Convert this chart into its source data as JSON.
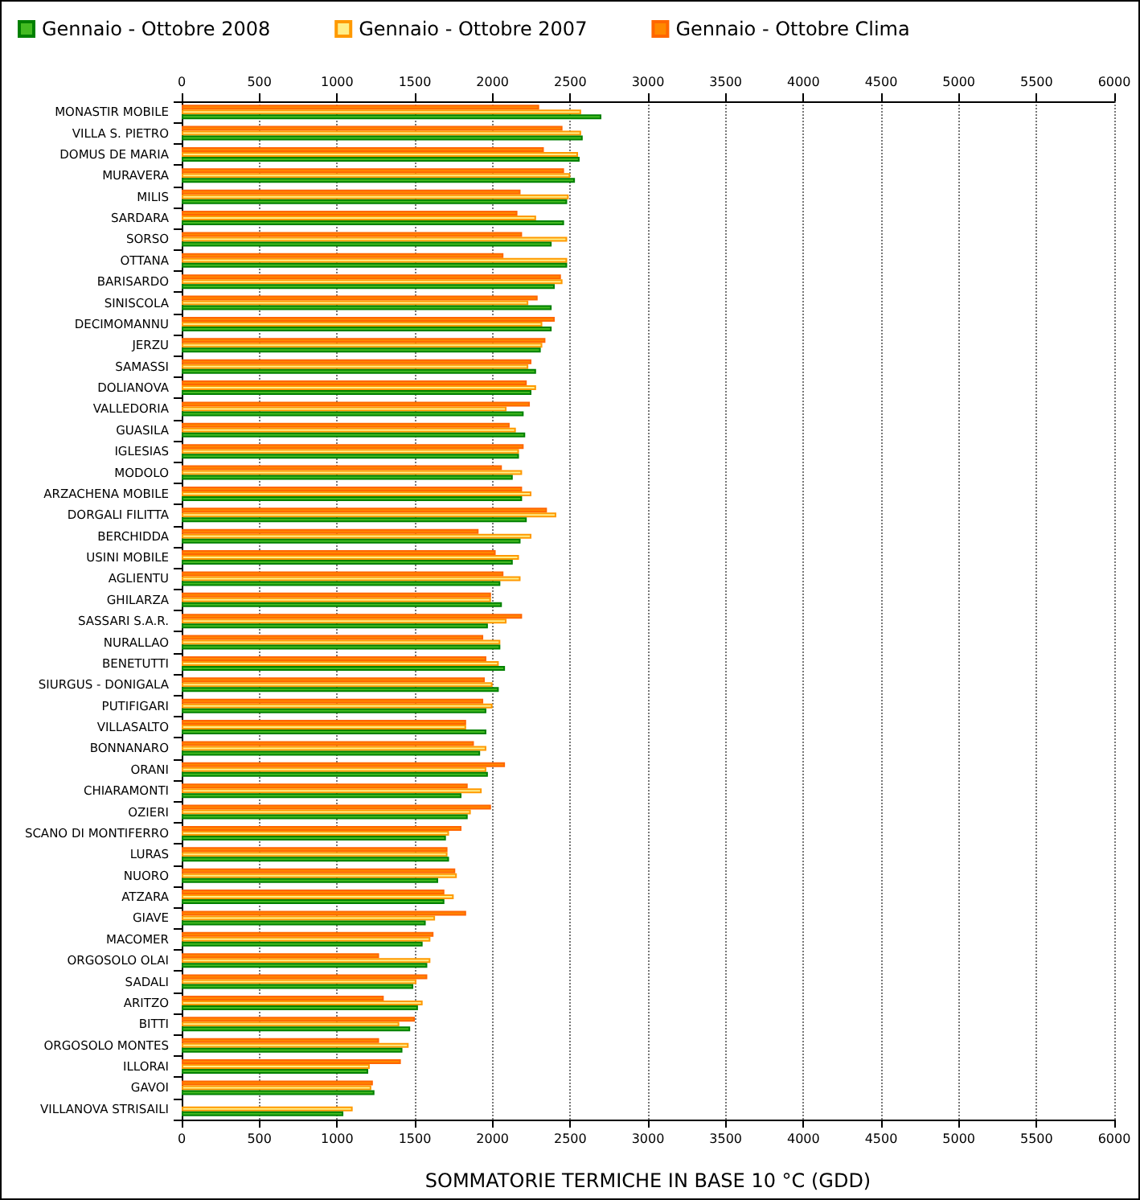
{
  "chart_data": {
    "type": "bar",
    "orientation": "horizontal",
    "xlabel": "SOMMATORIE TERMICHE IN BASE 10 °C (GDD)",
    "categories": [
      "MONASTIR MOBILE",
      "VILLA S. PIETRO",
      "DOMUS DE MARIA",
      "MURAVERA",
      "MILIS",
      "SARDARA",
      "SORSO",
      "OTTANA",
      "BARISARDO",
      "SINISCOLA",
      "DECIMOMANNU",
      "JERZU",
      "SAMASSI",
      "DOLIANOVA",
      "VALLEDORIA",
      "GUASILA",
      "IGLESIAS",
      "MODOLO",
      "ARZACHENA MOBILE",
      "DORGALI FILITTA",
      "BERCHIDDA",
      "USINI MOBILE",
      "AGLIENTU",
      "GHILARZA",
      "SASSARI S.A.R.",
      "NURALLAO",
      "BENETUTTI",
      "SIURGUS - DONIGALA",
      "PUTIFIGARI",
      "VILLASALTO",
      "BONNANARO",
      "ORANI",
      "CHIARAMONTI",
      "OZIERI",
      "SCANO DI MONTIFERRO",
      "LURAS",
      "NUORO",
      "ATZARA",
      "GIAVE",
      "MACOMER",
      "ORGOSOLO OLAI",
      "SADALI",
      "ARITZO",
      "BITTI",
      "ORGOSOLO MONTES",
      "ILLORAI",
      "GAVOI",
      "VILLANOVA STRISAILI"
    ],
    "series": [
      {
        "name": "Gennaio - Ottobre 2008",
        "color": "#44bb22",
        "values": [
          2700,
          2580,
          2560,
          2530,
          2480,
          2460,
          2380,
          2480,
          2400,
          2380,
          2380,
          2310,
          2280,
          2250,
          2200,
          2210,
          2170,
          2130,
          2190,
          2220,
          2180,
          2130,
          2050,
          2060,
          1970,
          2050,
          2080,
          2040,
          1960,
          1960,
          1920,
          1970,
          1800,
          1840,
          1700,
          1720,
          1650,
          1690,
          1570,
          1550,
          1580,
          1490,
          1520,
          1470,
          1420,
          1200,
          1240,
          1040
        ]
      },
      {
        "name": "Gennaio - Ottobre 2007",
        "color": "#ffee88",
        "values": [
          2570,
          2570,
          2550,
          2500,
          2490,
          2280,
          2480,
          2480,
          2450,
          2230,
          2320,
          2320,
          2230,
          2280,
          2090,
          2150,
          2170,
          2190,
          2250,
          2410,
          2250,
          2170,
          2180,
          1990,
          2090,
          2050,
          2040,
          2000,
          2000,
          1830,
          1960,
          1960,
          1930,
          1860,
          1720,
          1710,
          1770,
          1750,
          1630,
          1600,
          1600,
          1510,
          1550,
          1400,
          1460,
          1210,
          1220,
          1100
        ]
      },
      {
        "name": "Gennaio - Ottobre Clima",
        "color": "#ff8800",
        "values": [
          2300,
          2450,
          2330,
          2460,
          2180,
          2160,
          2190,
          2070,
          2440,
          2290,
          2400,
          2340,
          2250,
          2220,
          2240,
          2110,
          2200,
          2060,
          2190,
          2350,
          1910,
          2020,
          2070,
          1990,
          2190,
          1940,
          1960,
          1950,
          1940,
          1830,
          1880,
          2080,
          1840,
          1990,
          1800,
          1710,
          1760,
          1690,
          1830,
          1620,
          1270,
          1580,
          1300,
          1500,
          1270,
          1410,
          1230,
          null
        ]
      }
    ],
    "xlim": [
      0,
      6000
    ],
    "xticks": [
      0,
      500,
      1000,
      1500,
      2000,
      2500,
      3000,
      3500,
      4000,
      4500,
      5000,
      5500,
      6000
    ],
    "x2lim": [
      0,
      6000
    ],
    "x2ticks": [
      0,
      500,
      1000,
      1500,
      2000,
      2500,
      3000,
      3500,
      4000,
      4500,
      5000,
      5500,
      6000
    ],
    "grid": "x",
    "legend": "top"
  }
}
